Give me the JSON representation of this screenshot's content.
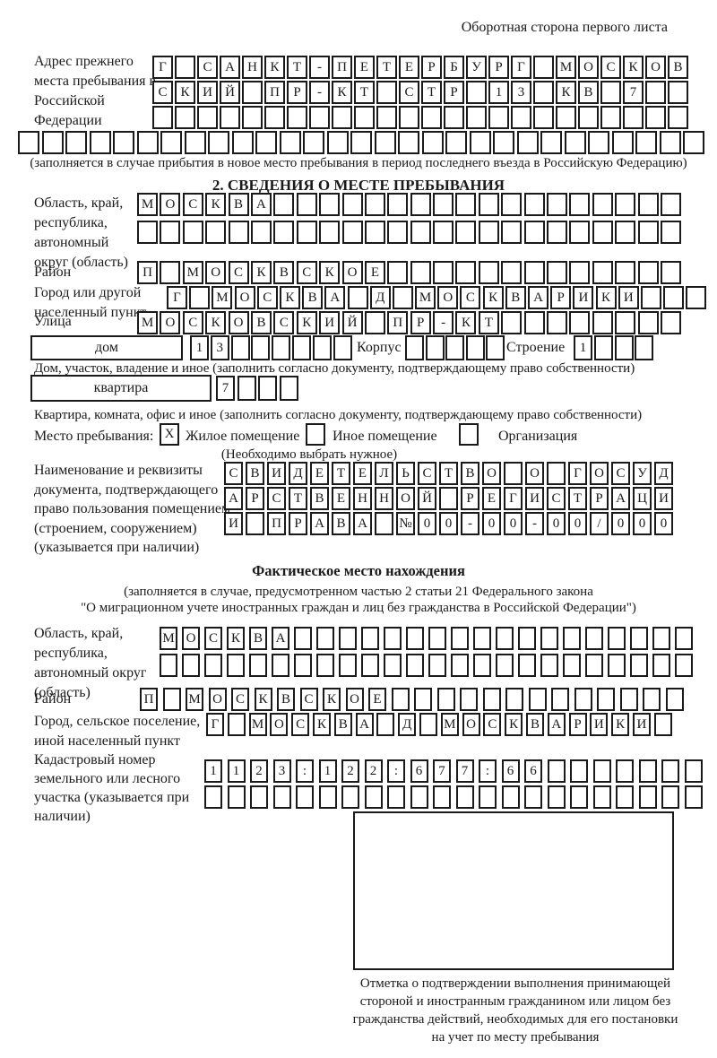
{
  "colors": {
    "ink": "#1a1a1a",
    "paper": "#ffffff"
  },
  "page": {
    "header_note": "Оборотная сторона первого листа"
  },
  "prev_address": {
    "label": "Адрес прежнего места пребывания в Российской Федерации",
    "rows": [
      {
        "text": "Г САНКТ-ПЕТЕРБУРГ МОСКОВ",
        "cells": 24
      },
      {
        "text": "СКИЙ ПР-КТ СТР 13 КВ 7",
        "cells": 24
      },
      {
        "text": "",
        "cells": 24
      },
      {
        "text": "",
        "cells": 29
      }
    ],
    "note": "(заполняется в случае прибытия в новое место пребывания в период последнего въезда в Российскую Федерацию)"
  },
  "section2": {
    "title": "2. СВЕДЕНИЯ О МЕСТЕ ПРЕБЫВАНИЯ",
    "region_label": "Область, край, республика, автономный округ (область)",
    "region_rows": [
      {
        "text": "МОСКВА",
        "cells": 24
      },
      {
        "text": "",
        "cells": 24
      }
    ],
    "district_label": "Район",
    "district_row": {
      "text": "П МОСКВСКОЕ",
      "cells": 24
    },
    "city_label": "Город или другой населенный пункт",
    "city_row": {
      "text": "Г МОСКВА Д МОСКВАРИКИ",
      "cells": 24
    },
    "street_label": "Улица",
    "street_row": {
      "text": "МОСКОВСКИЙ ПР-КТ",
      "cells": 24
    },
    "house": {
      "label": "дом",
      "number_row": {
        "text": "13",
        "cells": 8
      },
      "korpus_label": "Корпус",
      "korpus_row": {
        "text": "",
        "cells": 5
      },
      "stroenie_label": "Строение",
      "stroenie_row": {
        "text": "1",
        "cells": 4
      }
    },
    "house_note": "Дом, участок, владение и иное (заполнить согласно документу, подтверждающему право собственности)",
    "apartment": {
      "label": "квартира",
      "row": {
        "text": "7",
        "cells": 4
      }
    },
    "apartment_note": "Квартира, комната, офис и иное (заполнить согласно документу, подтверждающему право собственности)",
    "stay_type": {
      "label": "Место пребывания:",
      "options": [
        {
          "label": "Жилое помещение",
          "checked": "X"
        },
        {
          "label": "Иное помещение",
          "checked": ""
        },
        {
          "label": "Организация",
          "checked": ""
        }
      ],
      "note": "(Необходимо выбрать нужное)"
    },
    "doc_label": "Наименование и реквизиты документа, подтверждающего право пользования помещением (строением, сооружением) (указывается при наличии)",
    "doc_rows": [
      {
        "text": "СВИДЕТЕЛЬСТВО О ГОСУД",
        "cells": 21
      },
      {
        "text": "АРСТВЕННОЙ РЕГИСТРАЦИ",
        "cells": 21
      },
      {
        "text": "И ПРАВА №00-00-00/000",
        "cells": 21
      }
    ]
  },
  "actual": {
    "title": "Фактическое место нахождения",
    "note1": "(заполняется в случае, предусмотренном частью 2 статьи 21 Федерального закона",
    "note2": "\"О миграционном учете иностранных граждан и лиц без гражданства в Российской Федерации\")",
    "region_label": "Область, край, республика, автономный округ (область)",
    "region_rows": [
      {
        "text": "МОСКВА",
        "cells": 24
      },
      {
        "text": "",
        "cells": 24
      }
    ],
    "district_label": "Район",
    "district_row": {
      "text": "П МОСКВСКОЕ",
      "cells": 24
    },
    "city_label": "Город, сельское поселение, иной населенный пункт",
    "city_row": {
      "text": "Г МОСКВА Д МОСКВАРИКИ",
      "cells": 22
    },
    "cadastre_label": "Кадастровый номер земельного или лесного участка (указывается при наличии)",
    "cadastre_rows": [
      {
        "text": "1123:122:677:66",
        "cells": 22
      },
      {
        "text": "",
        "cells": 22
      }
    ],
    "stamp_note": "Отметка о подтверждении выполнения принимающей стороной и иностранным гражданином или лицом без гражданства действий, необходимых для его постановки на учет по месту пребывания"
  }
}
